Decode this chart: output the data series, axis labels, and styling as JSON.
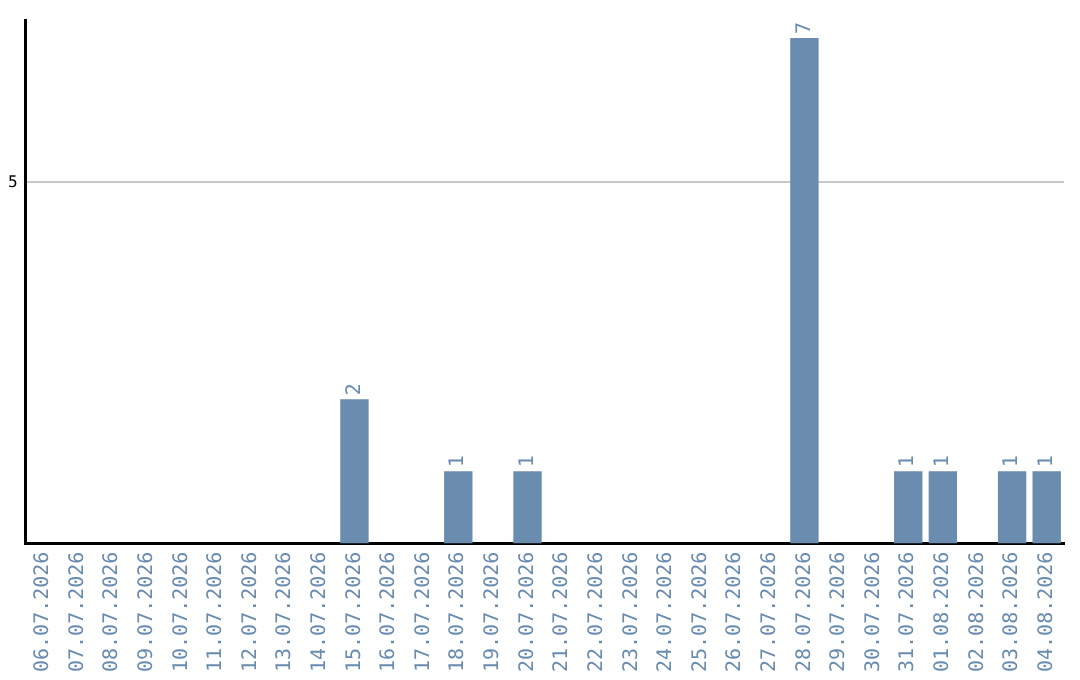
{
  "chart_data": {
    "type": "bar",
    "categories": [
      "06.07.2026",
      "07.07.2026",
      "08.07.2026",
      "09.07.2026",
      "10.07.2026",
      "11.07.2026",
      "12.07.2026",
      "13.07.2026",
      "14.07.2026",
      "15.07.2026",
      "16.07.2026",
      "17.07.2026",
      "18.07.2026",
      "19.07.2026",
      "20.07.2026",
      "21.07.2026",
      "22.07.2026",
      "23.07.2026",
      "24.07.2026",
      "25.07.2026",
      "26.07.2026",
      "27.07.2026",
      "28.07.2026",
      "29.07.2026",
      "30.07.2026",
      "31.07.2026",
      "01.08.2026",
      "02.08.2026",
      "03.08.2026",
      "04.08.2026"
    ],
    "values": [
      0,
      0,
      0,
      0,
      0,
      0,
      0,
      0,
      0,
      2,
      0,
      0,
      1,
      0,
      1,
      0,
      0,
      0,
      0,
      0,
      0,
      0,
      7,
      0,
      0,
      1,
      1,
      0,
      1,
      1
    ],
    "value_labels": [
      null,
      null,
      null,
      null,
      null,
      null,
      null,
      null,
      null,
      "2",
      null,
      null,
      "1",
      null,
      "1",
      null,
      null,
      null,
      null,
      null,
      null,
      null,
      "7",
      null,
      null,
      "1",
      "1",
      null,
      "1",
      "1"
    ],
    "color": "#6a8caf",
    "ylim": [
      0,
      7.25
    ],
    "yticks": [
      5
    ],
    "grid": "y",
    "legend": false
  }
}
